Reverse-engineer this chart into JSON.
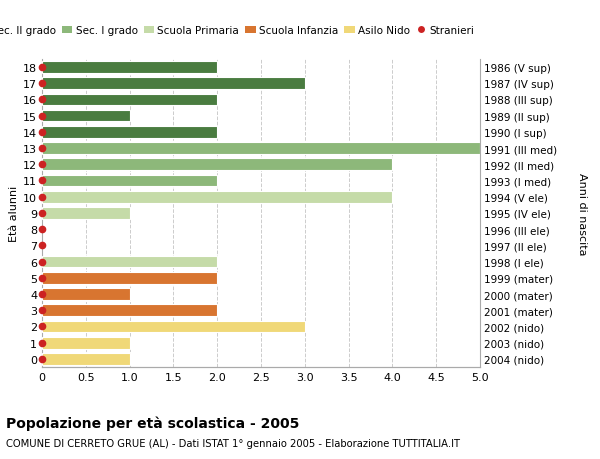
{
  "ages": [
    18,
    17,
    16,
    15,
    14,
    13,
    12,
    11,
    10,
    9,
    8,
    7,
    6,
    5,
    4,
    3,
    2,
    1,
    0
  ],
  "years": [
    "1986 (V sup)",
    "1987 (IV sup)",
    "1988 (III sup)",
    "1989 (II sup)",
    "1990 (I sup)",
    "1991 (III med)",
    "1992 (II med)",
    "1993 (I med)",
    "1994 (V ele)",
    "1995 (IV ele)",
    "1996 (III ele)",
    "1997 (II ele)",
    "1998 (I ele)",
    "1999 (mater)",
    "2000 (mater)",
    "2001 (mater)",
    "2002 (nido)",
    "2003 (nido)",
    "2004 (nido)"
  ],
  "bar_values": [
    2,
    3,
    2,
    1,
    2,
    5,
    4,
    2,
    4,
    1,
    0,
    0,
    2,
    2,
    1,
    2,
    3,
    1,
    1
  ],
  "bar_colors": [
    "#4a7c40",
    "#4a7c40",
    "#4a7c40",
    "#4a7c40",
    "#4a7c40",
    "#8db87a",
    "#8db87a",
    "#8db87a",
    "#c5dba8",
    "#c5dba8",
    "#c5dba8",
    "#c5dba8",
    "#c5dba8",
    "#d87530",
    "#d87530",
    "#d87530",
    "#f0d878",
    "#f0d878",
    "#f0d878"
  ],
  "stranieri_dots": [
    18,
    17,
    16,
    15,
    14,
    13,
    12,
    11,
    10,
    9,
    8,
    7,
    6,
    5,
    4,
    3,
    2,
    1,
    0
  ],
  "legend_labels": [
    "Sec. II grado",
    "Sec. I grado",
    "Scuola Primaria",
    "Scuola Infanzia",
    "Asilo Nido",
    "Stranieri"
  ],
  "legend_colors": [
    "#4a7c40",
    "#8db87a",
    "#c5dba8",
    "#d87530",
    "#f0d878",
    "#cc2222"
  ],
  "title": "Popolazione per età scolastica - 2005",
  "subtitle": "COMUNE DI CERRETO GRUE (AL) - Dati ISTAT 1° gennaio 2005 - Elaborazione TUTTITALIA.IT",
  "ylabel_left": "Età alunni",
  "ylabel_right": "Anni di nascita",
  "xlim": [
    0,
    5.0
  ],
  "xticks": [
    0,
    0.5,
    1.0,
    1.5,
    2.0,
    2.5,
    3.0,
    3.5,
    4.0,
    4.5,
    5.0
  ],
  "background_color": "#ffffff",
  "grid_color": "#cccccc",
  "bar_height": 0.72
}
